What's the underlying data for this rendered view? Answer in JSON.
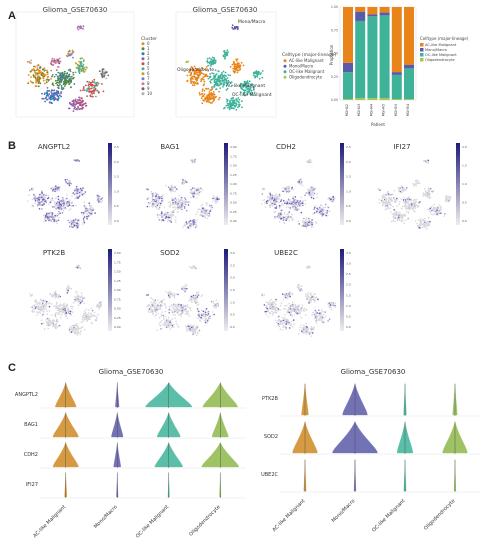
{
  "panels": {
    "a": "A",
    "b": "B",
    "c": "C"
  },
  "panelA": {
    "umap1_title": "Glioma_GSE70630",
    "umap2_title": "Glioma_GSE70630",
    "cluster_legend_title": "Cluster",
    "clusters": [
      "0",
      "1",
      "2",
      "3",
      "4",
      "5",
      "6",
      "7",
      "8",
      "9",
      "10"
    ],
    "cluster_colors": [
      "#f08a1f",
      "#5a8a3a",
      "#2a7ab8",
      "#8e5fb0",
      "#d44a4a",
      "#45b0a0",
      "#c8a020",
      "#7a7ad0",
      "#e070a8",
      "#6a6a6a",
      "#b0b0b0"
    ],
    "umap1_annotation": "10",
    "celltype_legend_title": "Celltype (major-lineage)",
    "celltypes": [
      "AC-like Malignant",
      "Mono/Macro",
      "OC-like Malignant",
      "Oligodendrocyte"
    ],
    "celltype_colors": [
      "#e8841a",
      "#5a5aa8",
      "#3fb39a",
      "#a5c84a"
    ],
    "umap2_labels": [
      "Mono/Macro",
      "Oligodendrocyte",
      "AC-like Malignant",
      "OC-like Malignant"
    ],
    "bar_ylabel": "Proportion",
    "bar_xlabel": "Patient",
    "bar_legend_title": "Celltype (major-lineage)"
  },
  "panelB": {
    "genes_row1": [
      "ANGPTL2",
      "BAG1",
      "CDH2",
      "IFI27"
    ],
    "genes_row2": [
      "PTK2B",
      "SOD2",
      "UBE2C"
    ],
    "colorbar_ticks": [
      [
        "2.5",
        "2.0",
        "1.5",
        "1.0",
        "0.5",
        "0.0"
      ],
      [
        "2.00",
        "1.75",
        "1.50",
        "1.25",
        "1.00",
        "0.75",
        "0.50",
        "0.25",
        "0.00"
      ],
      [
        "2.5",
        "2.0",
        "1.5",
        "1.0",
        "0.5",
        "0.0"
      ],
      [
        "2.0",
        "1.5",
        "1.0",
        "0.5",
        "0.0"
      ],
      [
        "2.00",
        "1.75",
        "1.50",
        "1.25",
        "1.00",
        "0.75",
        "0.50",
        "0.25",
        "0.00"
      ],
      [
        "3.0",
        "2.5",
        "2.0",
        "1.5",
        "1.0",
        "0.5",
        "0.0"
      ],
      [
        "3.5",
        "3.0",
        "2.5",
        "2.0",
        "1.5",
        "1.0",
        "0.5",
        "0.0"
      ]
    ]
  },
  "panelC": {
    "left_title": "Glioma_GSE70630",
    "right_title": "Glioma_GSE70630",
    "left_genes": [
      "ANGPTL2",
      "BAG1",
      "CDH2",
      "IFI27"
    ],
    "right_genes": [
      "PTK2B",
      "SOD2",
      "UBE2C"
    ],
    "celltypes": [
      "AC-like Malignant",
      "Mono/Macro",
      "OC-like Malignant",
      "Oligodendrocyte"
    ],
    "violin_colors": [
      "#d08a22",
      "#5a5aa8",
      "#3fb39a",
      "#8fb84a"
    ]
  },
  "chart_data": [
    {
      "type": "bar",
      "stacked": true,
      "xlabel": "Patient",
      "ylabel": "Proportion",
      "categories": [
        "MGH42",
        "MGH43",
        "MGH44",
        "MGH45",
        "MGH53",
        "MGH54"
      ],
      "ylim": [
        0,
        1
      ],
      "series": [
        {
          "name": "AC-like Malignant",
          "values": [
            0.6,
            0.05,
            0.08,
            0.06,
            0.7,
            0.62
          ]
        },
        {
          "name": "Mono/Macro",
          "values": [
            0.1,
            0.1,
            0.02,
            0.03,
            0.03,
            0.04
          ]
        },
        {
          "name": "OC-like Malignant",
          "values": [
            0.29,
            0.83,
            0.88,
            0.89,
            0.26,
            0.33
          ]
        },
        {
          "name": "Oligodendrocyte",
          "values": [
            0.01,
            0.02,
            0.02,
            0.02,
            0.01,
            0.01
          ]
        }
      ]
    },
    {
      "type": "violin",
      "title": "Glioma_GSE70630",
      "categories": [
        "AC-like Malignant",
        "Mono/Macro",
        "OC-like Malignant",
        "Oligodendrocyte"
      ],
      "genes": [
        "ANGPTL2",
        "BAG1",
        "CDH2",
        "IFI27"
      ],
      "relative_width": [
        [
          0.45,
          0.08,
          1.0,
          0.75
        ],
        [
          0.55,
          0.25,
          0.5,
          0.35
        ],
        [
          0.55,
          0.15,
          0.6,
          0.8
        ],
        [
          0.05,
          0.03,
          0.02,
          0.02
        ]
      ]
    },
    {
      "type": "violin",
      "title": "Glioma_GSE70630",
      "categories": [
        "AC-like Malignant",
        "Mono/Macro",
        "OC-like Malignant",
        "Oligodendrocyte"
      ],
      "genes": [
        "PTK2B",
        "SOD2",
        "UBE2C"
      ],
      "relative_width": [
        [
          0.15,
          0.55,
          0.06,
          0.1
        ],
        [
          0.55,
          1.0,
          0.35,
          0.55
        ],
        [
          0.05,
          0.04,
          0.05,
          0.04
        ]
      ]
    }
  ]
}
